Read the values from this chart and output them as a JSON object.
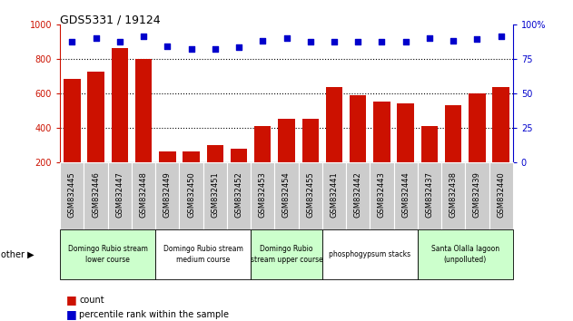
{
  "title": "GDS5331 / 19124",
  "samples": [
    "GSM832445",
    "GSM832446",
    "GSM832447",
    "GSM832448",
    "GSM832449",
    "GSM832450",
    "GSM832451",
    "GSM832452",
    "GSM832453",
    "GSM832454",
    "GSM832455",
    "GSM832441",
    "GSM832442",
    "GSM832443",
    "GSM832444",
    "GSM832437",
    "GSM832438",
    "GSM832439",
    "GSM832440"
  ],
  "counts": [
    680,
    725,
    860,
    800,
    260,
    260,
    300,
    280,
    410,
    450,
    450,
    635,
    590,
    550,
    540,
    410,
    530,
    600,
    635
  ],
  "percentiles": [
    87,
    90,
    87,
    91,
    84,
    82,
    82,
    83,
    88,
    90,
    87,
    87,
    87,
    87,
    87,
    90,
    88,
    89,
    91
  ],
  "bar_color": "#cc1100",
  "dot_color": "#0000cc",
  "left_axis_color": "#cc1100",
  "right_axis_color": "#0000cc",
  "ylim_left": [
    200,
    1000
  ],
  "ylim_right": [
    0,
    100
  ],
  "groups": [
    {
      "label": "Domingo Rubio stream\nlower course",
      "start": 0,
      "end": 4,
      "color": "#ccffcc"
    },
    {
      "label": "Domingo Rubio stream\nmedium course",
      "start": 4,
      "end": 8,
      "color": "#ffffff"
    },
    {
      "label": "Domingo Rubio\nstream upper course",
      "start": 8,
      "end": 11,
      "color": "#ccffcc"
    },
    {
      "label": "phosphogypsum stacks",
      "start": 11,
      "end": 15,
      "color": "#ffffff"
    },
    {
      "label": "Santa Olalla lagoon\n(unpolluted)",
      "start": 15,
      "end": 19,
      "color": "#ccffcc"
    }
  ],
  "legend_count_label": "count",
  "legend_percentile_label": "percentile rank within the sample",
  "other_label": "other",
  "background_color": "#ffffff",
  "tick_area_color": "#cccccc",
  "left_yticks": [
    200,
    400,
    600,
    800,
    1000
  ],
  "right_yticks": [
    0,
    25,
    50,
    75,
    100
  ],
  "right_ytick_labels": [
    "0",
    "25",
    "50",
    "75",
    "100%"
  ]
}
